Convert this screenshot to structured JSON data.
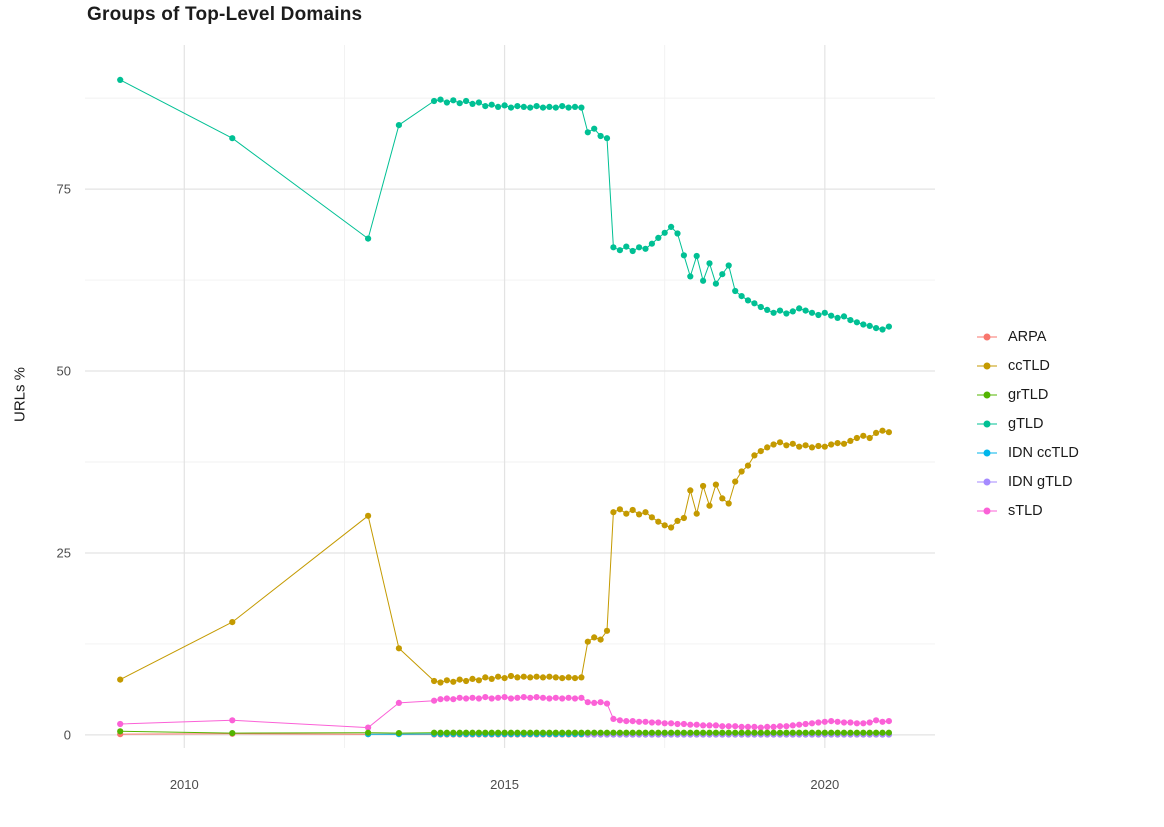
{
  "chart_data": {
    "type": "line",
    "marker": "point",
    "title": "Groups of Top-Level Domains",
    "xlabel": "",
    "ylabel": "URLs %",
    "xlim": [
      2008.45,
      2021.72
    ],
    "ylim": [
      -1.8,
      94.8
    ],
    "x_ticks": [
      2010,
      2015,
      2020
    ],
    "y_ticks": [
      0,
      25,
      50,
      75
    ],
    "x_minor": [
      2012.5,
      2017.5
    ],
    "y_minor": [
      12.5,
      37.5,
      62.5,
      87.5
    ],
    "grid": true,
    "legend_position": "right",
    "draw_order": [
      "ARPA",
      "IDN ccTLD",
      "IDN gTLD",
      "gTLD",
      "ccTLD",
      "sTLD",
      "grTLD"
    ],
    "series": [
      {
        "name": "ARPA",
        "color": "#F8766D",
        "sparse_points": [
          [
            2009.0,
            0.1
          ],
          [
            2010.75,
            0.15
          ],
          [
            2012.87,
            0.1
          ]
        ],
        "dense": {
          "x0": 2013.9,
          "dx": 0.1,
          "n": 72,
          "y": 0.06
        }
      },
      {
        "name": "ccTLD",
        "color": "#C49A00",
        "sparse_points": [
          [
            2009.0,
            7.6
          ],
          [
            2010.75,
            15.5
          ],
          [
            2012.87,
            30.1
          ],
          [
            2013.35,
            11.9
          ]
        ],
        "dense": {
          "x0": 2013.9,
          "dx": 0.1,
          "y": [
            7.4,
            7.2,
            7.5,
            7.3,
            7.6,
            7.4,
            7.7,
            7.5,
            7.9,
            7.7,
            8.0,
            7.8,
            8.1,
            7.9,
            8.0,
            7.9,
            8.0,
            7.9,
            8.0,
            7.9,
            7.8,
            7.9,
            7.8,
            7.9,
            12.8,
            13.4,
            13.1,
            14.3,
            30.6,
            31.0,
            30.4,
            30.9,
            30.3,
            30.6,
            29.9,
            29.3,
            28.8,
            28.5,
            29.4,
            29.8,
            33.6,
            30.4,
            34.2,
            31.5,
            34.4,
            32.5,
            31.8,
            34.8,
            36.2,
            37.0,
            38.4,
            39.0,
            39.5,
            39.9,
            40.2,
            39.8,
            40.0,
            39.6,
            39.8,
            39.5,
            39.7,
            39.6,
            39.9,
            40.1,
            40.0,
            40.4,
            40.8,
            41.1,
            40.8,
            41.5,
            41.8,
            41.6
          ]
        }
      },
      {
        "name": "grTLD",
        "color": "#53B400",
        "sparse_points": [
          [
            2009.0,
            0.5
          ],
          [
            2010.75,
            0.25
          ],
          [
            2012.87,
            0.3
          ],
          [
            2013.35,
            0.25
          ]
        ],
        "dense": {
          "x0": 2013.9,
          "dx": 0.1,
          "n": 72,
          "y": 0.3
        }
      },
      {
        "name": "gTLD",
        "color": "#00C094",
        "sparse_points": [
          [
            2009.0,
            90.0
          ],
          [
            2010.75,
            82.0
          ],
          [
            2012.87,
            68.2
          ],
          [
            2013.35,
            83.8
          ]
        ],
        "dense": {
          "x0": 2013.9,
          "dx": 0.1,
          "y": [
            87.1,
            87.3,
            86.9,
            87.2,
            86.8,
            87.1,
            86.7,
            86.9,
            86.4,
            86.6,
            86.3,
            86.5,
            86.2,
            86.4,
            86.3,
            86.2,
            86.4,
            86.2,
            86.3,
            86.2,
            86.4,
            86.2,
            86.3,
            86.2,
            82.8,
            83.3,
            82.3,
            82.0,
            67.0,
            66.6,
            67.1,
            66.5,
            67.0,
            66.8,
            67.5,
            68.3,
            69.0,
            69.8,
            68.9,
            65.9,
            63.0,
            65.8,
            62.4,
            64.8,
            62.0,
            63.3,
            64.5,
            61.0,
            60.3,
            59.7,
            59.3,
            58.8,
            58.4,
            58.0,
            58.3,
            57.9,
            58.2,
            58.6,
            58.3,
            58.0,
            57.7,
            58.0,
            57.6,
            57.3,
            57.5,
            57.0,
            56.7,
            56.4,
            56.2,
            55.9,
            55.7,
            56.1
          ]
        }
      },
      {
        "name": "IDN ccTLD",
        "color": "#00B6EB",
        "sparse_points": [
          [
            2012.87,
            0.1
          ],
          [
            2013.35,
            0.1
          ]
        ],
        "dense": {
          "x0": 2013.9,
          "dx": 0.1,
          "n": 72,
          "y": 0.12
        }
      },
      {
        "name": "IDN gTLD",
        "color": "#A58AFF",
        "sparse_points": [],
        "dense": {
          "x0": 2016.3,
          "dx": 0.1,
          "n": 48,
          "y": 0.05
        }
      },
      {
        "name": "sTLD",
        "color": "#FB61D7",
        "sparse_points": [
          [
            2009.0,
            1.5
          ],
          [
            2010.75,
            2.0
          ],
          [
            2012.87,
            1.0
          ],
          [
            2013.35,
            4.4
          ]
        ],
        "dense": {
          "x0": 2013.9,
          "dx": 0.1,
          "y": [
            4.7,
            4.9,
            5.0,
            4.9,
            5.1,
            5.0,
            5.1,
            5.0,
            5.2,
            5.0,
            5.1,
            5.2,
            5.0,
            5.1,
            5.2,
            5.1,
            5.2,
            5.1,
            5.0,
            5.1,
            5.0,
            5.1,
            5.0,
            5.1,
            4.5,
            4.4,
            4.5,
            4.3,
            2.2,
            2.0,
            1.9,
            1.9,
            1.8,
            1.8,
            1.7,
            1.7,
            1.6,
            1.6,
            1.5,
            1.5,
            1.4,
            1.4,
            1.3,
            1.3,
            1.3,
            1.2,
            1.2,
            1.2,
            1.1,
            1.1,
            1.1,
            1.0,
            1.1,
            1.1,
            1.2,
            1.2,
            1.3,
            1.4,
            1.5,
            1.6,
            1.7,
            1.8,
            1.9,
            1.8,
            1.7,
            1.7,
            1.6,
            1.6,
            1.7,
            2.0,
            1.8,
            1.9
          ]
        }
      }
    ]
  }
}
